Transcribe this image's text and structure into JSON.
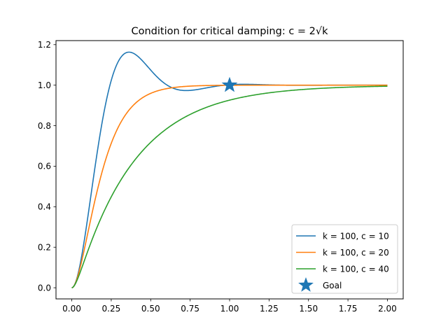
{
  "chart_data": {
    "type": "line",
    "title": "Condition for critical damping: c = 2√k",
    "xlabel": "",
    "ylabel": "",
    "xlim": [
      -0.1,
      2.1
    ],
    "ylim": [
      -0.055,
      1.22
    ],
    "xticks": [
      "0.00",
      "0.25",
      "0.50",
      "0.75",
      "1.00",
      "1.25",
      "1.50",
      "1.75",
      "2.00"
    ],
    "yticks": [
      "0.0",
      "0.2",
      "0.4",
      "0.6",
      "0.8",
      "1.0",
      "1.2"
    ],
    "grid": false,
    "legend_position": "lower right",
    "model": "y(x) for a mass-spring-damper starting at 0, driven to 1",
    "series": [
      {
        "name": "k = 100, c = 10",
        "k": 100,
        "c": 10,
        "color": "#1f77b4",
        "x_range": [
          0,
          2
        ]
      },
      {
        "name": "k = 100, c = 20",
        "k": 100,
        "c": 20,
        "color": "#ff7f0e",
        "x_range": [
          0,
          2
        ]
      },
      {
        "name": "k = 100, c = 40",
        "k": 100,
        "c": 40,
        "color": "#2ca02c",
        "x_range": [
          0,
          2
        ]
      }
    ],
    "marker": {
      "name": "Goal",
      "x": 1.0,
      "y": 1.0,
      "shape": "star",
      "color": "#1f77b4"
    }
  }
}
